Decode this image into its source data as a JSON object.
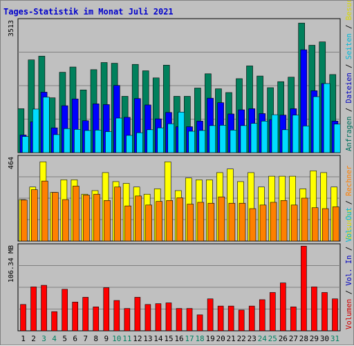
{
  "chart_data": {
    "type": "bar",
    "title": "Tages-Statistik im Monat Juli 2021",
    "x": [
      "1",
      "2",
      "3",
      "4",
      "5",
      "6",
      "7",
      "8",
      "9",
      "10",
      "11",
      "12",
      "13",
      "14",
      "15",
      "16",
      "17",
      "18",
      "19",
      "20",
      "21",
      "22",
      "23",
      "24",
      "25",
      "26",
      "27",
      "28",
      "29",
      "30",
      "31"
    ],
    "weekend_days": [
      3,
      4,
      10,
      11,
      17,
      18,
      24,
      25,
      31
    ],
    "grid": true,
    "panels": [
      {
        "ymax_label": "3513",
        "ymax": 3513,
        "side_label_parts": [
          {
            "text": "Anfragen",
            "color": "#006f5c"
          },
          {
            "text": " / ",
            "color": "#000000"
          },
          {
            "text": "Dateien",
            "color": "#0000c0"
          },
          {
            "text": " / ",
            "color": "#000000"
          },
          {
            "text": "Seiten",
            "color": "#00b8d8"
          },
          {
            "text": " / ",
            "color": "#000000"
          },
          {
            "text": "Besuche",
            "color": "#d8d800"
          }
        ],
        "series": [
          {
            "name": "Anfragen",
            "color": "#00805c",
            "values": [
              1170,
              2470,
              2570,
              1460,
              2140,
              2280,
              1670,
              2210,
              2400,
              2380,
              1500,
              2350,
              2180,
              1990,
              2330,
              1500,
              1500,
              1720,
              2100,
              1700,
              1600,
              1970,
              2310,
              2040,
              1730,
              1890,
              2010,
              3450,
              2860,
              2950,
              2080
            ]
          },
          {
            "name": "Dateien",
            "color": "#0000ff",
            "values": [
              470,
              820,
              1610,
              660,
              1250,
              1430,
              850,
              1300,
              1280,
              1790,
              940,
              1440,
              1270,
              900,
              1070,
              690,
              690,
              840,
              1450,
              1330,
              1030,
              1140,
              1170,
              1040,
              880,
              1000,
              1170,
              2740,
              1650,
              1840,
              840
            ]
          },
          {
            "name": "Seiten",
            "color": "#00dcff",
            "values": [
              430,
              1160,
              1480,
              480,
              640,
              620,
              590,
              600,
              560,
              920,
              460,
              530,
              610,
              660,
              770,
              1080,
              570,
              590,
              720,
              730,
              600,
              720,
              780,
              840,
              1010,
              610,
              1000,
              710,
              1490,
              1840,
              760
            ]
          }
        ]
      },
      {
        "ymax_label": "464",
        "ymax": 464,
        "side_label_parts": [
          {
            "text": "Besuche",
            "color": "#d8d800"
          },
          {
            "text": " / ",
            "color": "#000000"
          },
          {
            "text": "Rechner",
            "color": "#ff7f00"
          }
        ],
        "series": [
          {
            "name": "Besuche",
            "color": "#ffff00",
            "values": [
              230,
              300,
              440,
              270,
              340,
              340,
              260,
              280,
              380,
              330,
              320,
              300,
              260,
              290,
              440,
              280,
              350,
              340,
              340,
              380,
              400,
              330,
              380,
              300,
              360,
              360,
              360,
              290,
              390,
              380,
              300
            ]
          },
          {
            "name": "Rechner",
            "color": "#ff8000",
            "values": [
              228,
              285,
              333,
              270,
              230,
              305,
              255,
              260,
              225,
              300,
              195,
              250,
              200,
              220,
              225,
              240,
              205,
              215,
              210,
              245,
              210,
              210,
              180,
              200,
              215,
              225,
              200,
              238,
              185,
              180,
              190
            ]
          }
        ]
      },
      {
        "ymax_label": "106.34 MB",
        "ymax": 106.34,
        "side_label_parts": [
          {
            "text": "Volumen",
            "color": "#d00000"
          },
          {
            "text": " / ",
            "color": "#000000"
          },
          {
            "text": "Vol. In",
            "color": "#0000c0"
          },
          {
            "text": " / ",
            "color": "#000000"
          },
          {
            "text": "Vol. Out",
            "color": "#00b8d8"
          }
        ],
        "series": [
          {
            "name": "Volumen",
            "color": "#ff0000",
            "values": [
              33,
              55,
              57,
              24,
              52,
              36,
              42,
              30,
              54,
              38,
              28,
              42,
              33,
              34,
              35,
              28,
              28,
              20,
              40,
              31,
              31,
              26,
              31,
              39,
              48,
              60,
              30,
              106,
              55,
              48,
              40
            ]
          }
        ]
      }
    ]
  }
}
